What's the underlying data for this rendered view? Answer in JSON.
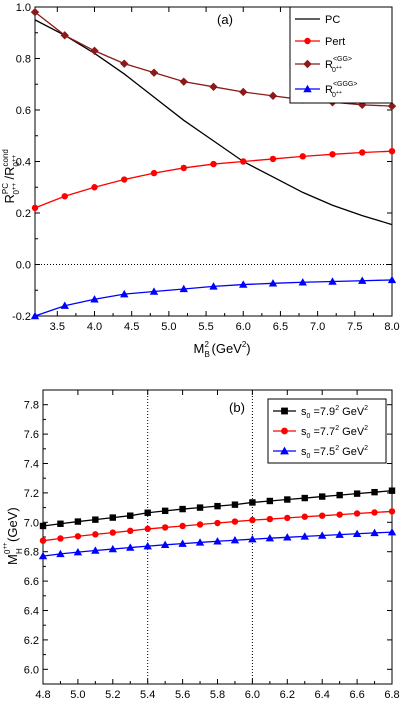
{
  "chart_data": [
    {
      "panel_label": "(a)",
      "type": "line",
      "ylabel_main": "R",
      "ylabel_sup": "PC",
      "ylabel_sub": "0",
      "ylabel_subsup": "++",
      "ylabel_slash": "/R",
      "ylabel_sup2": "cond",
      "ylabel_sub2": "0",
      "ylabel_subsup2": "++",
      "xlabel_main": "M",
      "xlabel_sup": "2",
      "xlabel_sub": "B",
      "xlabel_tail": "(GeV",
      "xlabel_tail_sup": "2",
      "xlabel_end": ")",
      "xlim": [
        3.2,
        8.0
      ],
      "ylim": [
        -0.2,
        1.0
      ],
      "xticks": [
        "3.5",
        "4.0",
        "4.5",
        "5.0",
        "5.5",
        "6.0",
        "6.5",
        "7.0",
        "7.5",
        "8.0"
      ],
      "xtick_values": [
        3.5,
        4.0,
        4.5,
        5.0,
        5.5,
        6.0,
        6.5,
        7.0,
        7.5,
        8.0
      ],
      "yticks": [
        "-0.2",
        "0.0",
        "0.2",
        "0.4",
        "0.6",
        "0.8",
        "1.0"
      ],
      "ytick_values": [
        -0.2,
        0.0,
        0.2,
        0.4,
        0.6,
        0.8,
        1.0
      ],
      "zero_line": true,
      "legend_position": "top-right",
      "series": [
        {
          "name": "PC",
          "color": "#000000",
          "marker": "none",
          "x": [
            3.2,
            3.6,
            4.0,
            4.4,
            4.8,
            5.2,
            5.6,
            6.0,
            6.4,
            6.8,
            7.2,
            7.6,
            8.0
          ],
          "y": [
            0.95,
            0.89,
            0.82,
            0.74,
            0.65,
            0.56,
            0.48,
            0.4,
            0.34,
            0.28,
            0.23,
            0.19,
            0.155
          ]
        },
        {
          "name": "Pert",
          "color": "#ff0000",
          "marker": "circle",
          "x": [
            3.2,
            3.6,
            4.0,
            4.4,
            4.8,
            5.2,
            5.6,
            6.0,
            6.4,
            6.8,
            7.2,
            7.6,
            8.0
          ],
          "y": [
            0.22,
            0.265,
            0.3,
            0.33,
            0.355,
            0.375,
            0.39,
            0.4,
            0.41,
            0.42,
            0.428,
            0.435,
            0.44
          ]
        },
        {
          "name_main": "R",
          "name_sub": "0",
          "name_subsup": "++",
          "name_sup": "<GG>",
          "color": "#8b1a1a",
          "marker": "diamond",
          "x": [
            3.2,
            3.6,
            4.0,
            4.4,
            4.8,
            5.2,
            5.6,
            6.0,
            6.4,
            6.8,
            7.2,
            7.6,
            8.0
          ],
          "y": [
            0.98,
            0.89,
            0.83,
            0.78,
            0.745,
            0.71,
            0.69,
            0.67,
            0.655,
            0.64,
            0.63,
            0.62,
            0.615
          ]
        },
        {
          "name_main": "R",
          "name_sub": "0",
          "name_subsup": "++",
          "name_sup": "<GGG>",
          "color": "#0000ff",
          "marker": "triangle",
          "x": [
            3.2,
            3.6,
            4.0,
            4.4,
            4.8,
            5.2,
            5.6,
            6.0,
            6.4,
            6.8,
            7.2,
            7.6,
            8.0
          ],
          "y": [
            -0.2,
            -0.16,
            -0.135,
            -0.115,
            -0.105,
            -0.095,
            -0.085,
            -0.078,
            -0.073,
            -0.069,
            -0.066,
            -0.063,
            -0.06
          ]
        }
      ]
    },
    {
      "panel_label": "(b)",
      "type": "line",
      "ylabel_main": "M",
      "ylabel_sub": "H",
      "ylabel_sup": "0",
      "ylabel_supsup": "++",
      "ylabel_tail": "(GeV)",
      "xlabel_main": "M",
      "xlabel_sup": "2",
      "xlabel_sub": "B",
      "xlabel_tail": "(GeV",
      "xlabel_tail_sup": "2",
      "xlabel_end": ")",
      "xlim": [
        4.8,
        6.8
      ],
      "ylim": [
        5.9,
        7.9
      ],
      "xticks": [
        "4.8",
        "5.0",
        "5.2",
        "5.4",
        "5.6",
        "5.8",
        "6.0",
        "6.2",
        "6.4",
        "6.6",
        "6.8"
      ],
      "xtick_values": [
        4.8,
        5.0,
        5.2,
        5.4,
        5.6,
        5.8,
        6.0,
        6.2,
        6.4,
        6.6,
        6.8
      ],
      "yticks": [
        "6.0",
        "6.2",
        "6.4",
        "6.6",
        "6.8",
        "7.0",
        "7.2",
        "7.4",
        "7.6",
        "7.8"
      ],
      "ytick_values": [
        6.0,
        6.2,
        6.4,
        6.6,
        6.8,
        7.0,
        7.2,
        7.4,
        7.6,
        7.8
      ],
      "vlines": [
        5.4,
        6.0
      ],
      "legend_position": "top-right",
      "series": [
        {
          "name_pre": "s",
          "name_sub": "0",
          "name_mid": " =7.9",
          "name_sup": "2",
          "name_post": " GeV",
          "name_sup2": "2",
          "color": "#000000",
          "marker": "square",
          "x": [
            4.8,
            4.9,
            5.0,
            5.1,
            5.2,
            5.3,
            5.4,
            5.5,
            5.6,
            5.7,
            5.8,
            5.9,
            6.0,
            6.1,
            6.2,
            6.3,
            6.4,
            6.5,
            6.6,
            6.7,
            6.8
          ],
          "y": [
            6.975,
            6.99,
            7.005,
            7.018,
            7.032,
            7.045,
            7.065,
            7.078,
            7.09,
            7.1,
            7.11,
            7.12,
            7.135,
            7.145,
            7.155,
            7.165,
            7.175,
            7.185,
            7.195,
            7.205,
            7.215
          ]
        },
        {
          "name_pre": "s",
          "name_sub": "0",
          "name_mid": " =7.7",
          "name_sup": "2",
          "name_post": " GeV",
          "name_sup2": "2",
          "color": "#ff0000",
          "marker": "circle",
          "x": [
            4.8,
            4.9,
            5.0,
            5.1,
            5.2,
            5.3,
            5.4,
            5.5,
            5.6,
            5.7,
            5.8,
            5.9,
            6.0,
            6.1,
            6.2,
            6.3,
            6.4,
            6.5,
            6.6,
            6.7,
            6.8
          ],
          "y": [
            6.875,
            6.89,
            6.905,
            6.918,
            6.93,
            6.942,
            6.955,
            6.965,
            6.975,
            6.985,
            6.995,
            7.005,
            7.015,
            7.022,
            7.03,
            7.038,
            7.045,
            7.052,
            7.06,
            7.067,
            7.074
          ]
        },
        {
          "name_pre": "s",
          "name_sub": "0",
          "name_mid": " =7.5",
          "name_sup": "2",
          "name_post": " GeV",
          "name_sup2": "2",
          "color": "#0000ff",
          "marker": "triangle",
          "x": [
            4.8,
            4.9,
            5.0,
            5.1,
            5.2,
            5.3,
            5.4,
            5.5,
            5.6,
            5.7,
            5.8,
            5.9,
            6.0,
            6.1,
            6.2,
            6.3,
            6.4,
            6.5,
            6.6,
            6.7,
            6.8
          ],
          "y": [
            6.77,
            6.785,
            6.797,
            6.808,
            6.818,
            6.828,
            6.838,
            6.847,
            6.855,
            6.863,
            6.871,
            6.878,
            6.885,
            6.892,
            6.898,
            6.904,
            6.91,
            6.916,
            6.922,
            6.928,
            6.933
          ]
        }
      ]
    }
  ]
}
